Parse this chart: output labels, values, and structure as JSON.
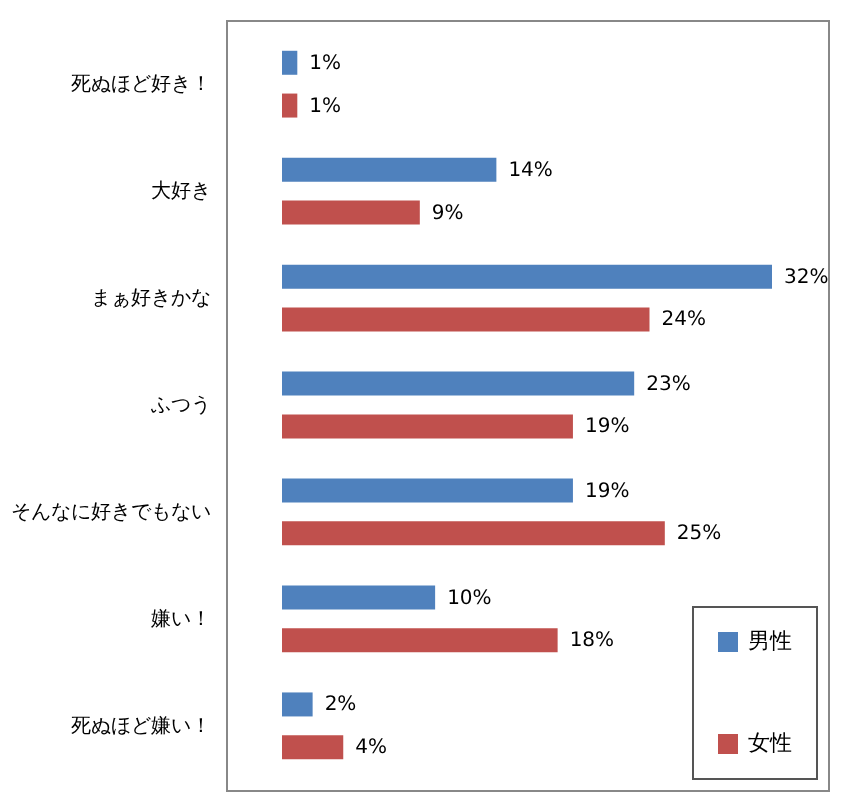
{
  "chart_data": {
    "type": "bar",
    "orientation": "horizontal",
    "categories": [
      "死ぬほど好き！",
      "大好き",
      "まぁ好きかな",
      "ふつう",
      "そんなに好きでもない",
      "嫌い！",
      "死ぬほど嫌い！"
    ],
    "series": [
      {
        "name": "男性",
        "color": "#4f81bd",
        "values": [
          1,
          14,
          32,
          23,
          19,
          10,
          2
        ],
        "value_labels": [
          "1%",
          "14%",
          "32%",
          "23%",
          "19%",
          "10%",
          "2%"
        ]
      },
      {
        "name": "女性",
        "color": "#c0504d",
        "values": [
          1,
          9,
          24,
          19,
          25,
          18,
          4
        ],
        "value_labels": [
          "1%",
          "9%",
          "24%",
          "19%",
          "25%",
          "18%",
          "4%"
        ]
      }
    ],
    "legend": "bottom right",
    "grid": false
  }
}
